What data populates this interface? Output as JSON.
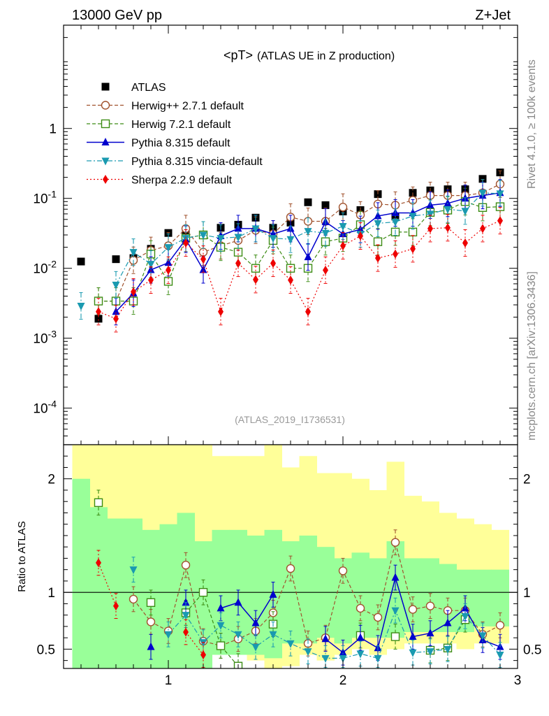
{
  "header": {
    "left": "13000 GeV pp",
    "right": "Z+Jet",
    "side_top": "Rivet 4.1.0, ≥ 100k events",
    "side_bottom": "mcplots.cern.ch [arXiv:1306.3436]",
    "watermark": "(ATLAS_2019_I1736531)"
  },
  "colors": {
    "atlas": "#000000",
    "herwigpp": "#a0522d",
    "herwig7": "#3c8c14",
    "pythia": "#0000cd",
    "vincia": "#1a9ab0",
    "sherpa": "#ee0000",
    "band_outer": "#ffff99",
    "band_inner": "#99ff99"
  },
  "chart_data": [
    {
      "type": "scatter",
      "title_main": "<pT>",
      "title_sub": "(ATLAS UE in Z production)",
      "xlabel": "",
      "ylabel": "",
      "yscale": "log",
      "xlim": [
        0.4,
        3.0
      ],
      "ylim": [
        3e-05,
        30
      ],
      "yticks": [
        0.0001,
        0.001,
        0.01,
        0.1,
        1
      ],
      "ytick_labels": [
        "10^-4",
        "10^-3",
        "10^-2",
        "10^-1",
        "1"
      ],
      "x": [
        0.5,
        0.6,
        0.7,
        0.8,
        0.9,
        1.0,
        1.1,
        1.2,
        1.3,
        1.4,
        1.5,
        1.6,
        1.7,
        1.8,
        1.9,
        2.0,
        2.1,
        2.2,
        2.3,
        2.4,
        2.5,
        2.6,
        2.7,
        2.8,
        2.9
      ],
      "legend": [
        "ATLAS",
        "Herwig++ 2.7.1 default",
        "Herwig 7.2.1 default",
        "Pythia 8.315 default",
        "Pythia 8.315 vincia-default",
        "Sherpa 2.2.9 default"
      ],
      "series": [
        {
          "name": "ATLAS",
          "key": "atlas",
          "marker": "square-filled",
          "line": "none",
          "values": [
            0.0125,
            0.0019,
            0.0135,
            0.014,
            0.019,
            0.032,
            0.035,
            0.03,
            0.038,
            0.042,
            0.053,
            0.038,
            0.045,
            0.088,
            0.08,
            0.065,
            0.068,
            0.115,
            0.055,
            0.12,
            0.13,
            0.135,
            0.135,
            0.19,
            0.235
          ]
        },
        {
          "name": "Herwig++ 2.7.1 default",
          "key": "herwigpp",
          "marker": "circle-open",
          "line": "dashed",
          "values": [
            null,
            0.0034,
            0.0034,
            0.013,
            0.018,
            0.021,
            0.037,
            0.017,
            0.021,
            0.025,
            0.035,
            0.031,
            0.054,
            0.047,
            0.047,
            0.075,
            0.058,
            0.083,
            0.08,
            0.094,
            0.11,
            0.11,
            0.11,
            0.12,
            0.16
          ]
        },
        {
          "name": "Herwig 7.2.1 default",
          "key": "herwig7",
          "marker": "square-open",
          "line": "dashed",
          "values": [
            null,
            0.0034,
            0.0034,
            0.0034,
            0.016,
            0.0065,
            0.027,
            0.03,
            0.02,
            0.017,
            0.01,
            0.025,
            0.01,
            0.01,
            0.024,
            0.027,
            0.042,
            0.024,
            0.033,
            0.033,
            0.063,
            0.068,
            0.09,
            0.074,
            0.076
          ]
        },
        {
          "name": "Pythia 8.315 default",
          "key": "pythia",
          "marker": "triangle-up-filled",
          "line": "solid",
          "values": [
            null,
            null,
            0.0024,
            0.0044,
            0.0095,
            0.012,
            0.026,
            0.0095,
            0.029,
            0.037,
            0.037,
            0.031,
            0.037,
            0.0145,
            0.046,
            0.031,
            0.036,
            0.056,
            0.062,
            0.062,
            0.08,
            0.085,
            0.1,
            0.11,
            0.12
          ]
        },
        {
          "name": "Pythia 8.315 vincia-default",
          "key": "vincia",
          "marker": "triangle-down-filled",
          "line": "dashdot",
          "values": [
            0.0029,
            null,
            0.0058,
            0.017,
            0.0115,
            0.02,
            0.027,
            0.03,
            0.027,
            0.028,
            0.037,
            0.027,
            0.026,
            0.034,
            0.032,
            0.04,
            0.031,
            0.044,
            0.046,
            0.056,
            0.06,
            0.07,
            0.066,
            0.12,
            0.117
          ]
        },
        {
          "name": "Sherpa 2.2.9 default",
          "key": "sherpa",
          "marker": "diamond-filled",
          "line": "dotted",
          "values": [
            null,
            0.0024,
            0.0019,
            0.0046,
            0.0068,
            0.0094,
            0.023,
            0.0135,
            0.0024,
            0.0118,
            0.0069,
            0.0118,
            0.0068,
            0.0024,
            0.0094,
            0.021,
            0.029,
            0.014,
            0.016,
            0.019,
            0.037,
            0.038,
            0.023,
            0.037,
            0.048
          ]
        }
      ]
    },
    {
      "type": "scatter",
      "ylabel": "Ratio to ATLAS",
      "xlim": [
        0.4,
        3.0
      ],
      "ylim": [
        0.33,
        2.3
      ],
      "xticks": [
        1,
        2,
        3
      ],
      "xtick_labels": [
        "1",
        "2",
        "3"
      ],
      "yticks": [
        0.5,
        1,
        2
      ],
      "ytick_labels": [
        "0.5",
        "1",
        "2"
      ],
      "reference_line": 1,
      "x": [
        0.5,
        0.6,
        0.7,
        0.8,
        0.9,
        1.0,
        1.1,
        1.2,
        1.3,
        1.4,
        1.5,
        1.6,
        1.7,
        1.8,
        1.9,
        2.0,
        2.1,
        2.2,
        2.3,
        2.4,
        2.5,
        2.6,
        2.7,
        2.8,
        2.9
      ],
      "band_outer": [
        [
          0.0,
          2.4
        ],
        [
          0.0,
          2.4
        ],
        [
          0.0,
          2.4
        ],
        [
          0.0,
          2.4
        ],
        [
          0.0,
          2.4
        ],
        [
          0.0,
          2.4
        ],
        [
          0.0,
          2.4
        ],
        [
          0.0,
          2.4
        ],
        [
          0.5,
          2.2
        ],
        [
          0.5,
          2.2
        ],
        [
          0.4,
          2.2
        ],
        [
          0.0,
          2.4
        ],
        [
          0.35,
          2.1
        ],
        [
          0.45,
          2.2
        ],
        [
          0.4,
          2.05
        ],
        [
          0.45,
          2.05
        ],
        [
          0.5,
          2.0
        ],
        [
          0.45,
          1.9
        ],
        [
          0.5,
          2.15
        ],
        [
          0.55,
          1.85
        ],
        [
          0.55,
          1.8
        ],
        [
          0.55,
          1.7
        ],
        [
          0.5,
          1.65
        ],
        [
          0.55,
          1.6
        ],
        [
          0.55,
          1.55
        ]
      ],
      "band_inner": [
        [
          0.0,
          2.0
        ],
        [
          0.0,
          1.75
        ],
        [
          0.0,
          1.65
        ],
        [
          0.0,
          1.65
        ],
        [
          0.0,
          1.55
        ],
        [
          0.0,
          1.6
        ],
        [
          0.0,
          1.7
        ],
        [
          0.0,
          1.45
        ],
        [
          0.45,
          1.55
        ],
        [
          0.45,
          1.55
        ],
        [
          0.45,
          1.5
        ],
        [
          0.42,
          1.55
        ],
        [
          0.55,
          1.45
        ],
        [
          0.55,
          1.5
        ],
        [
          0.6,
          1.4
        ],
        [
          0.55,
          1.3
        ],
        [
          0.6,
          1.35
        ],
        [
          0.6,
          1.3
        ],
        [
          0.6,
          1.45
        ],
        [
          0.65,
          1.3
        ],
        [
          0.65,
          1.3
        ],
        [
          0.65,
          1.25
        ],
        [
          0.65,
          1.2
        ],
        [
          0.7,
          1.2
        ],
        [
          0.7,
          1.2
        ]
      ],
      "series": [
        {
          "name": "Herwig++ 2.7.1 default",
          "key": "herwigpp",
          "marker": "circle-open",
          "line": "dashed",
          "values": [
            null,
            null,
            null,
            0.94,
            0.74,
            0.66,
            1.24,
            0.57,
            0.53,
            0.59,
            0.66,
            0.82,
            1.21,
            0.55,
            0.6,
            1.19,
            0.86,
            0.78,
            1.44,
            0.85,
            0.88,
            0.84,
            0.84,
            0.63,
            0.71
          ]
        },
        {
          "name": "Herwig 7.2.1 default",
          "key": "herwig7",
          "marker": "square-open",
          "line": "dashed",
          "values": [
            null,
            1.79,
            null,
            null,
            0.91,
            null,
            0.82,
            1.0,
            0.53,
            0.35,
            null,
            0.72,
            null,
            null,
            null,
            null,
            0.62,
            null,
            0.61,
            null,
            0.49,
            0.51,
            0.76,
            null,
            null
          ]
        },
        {
          "name": "Pythia 8.315 default",
          "key": "pythia",
          "marker": "triangle-up-filled",
          "line": "solid",
          "values": [
            null,
            null,
            null,
            null,
            0.52,
            null,
            0.91,
            null,
            0.86,
            0.91,
            0.73,
            0.98,
            null,
            null,
            0.59,
            0.47,
            0.6,
            0.51,
            1.13,
            0.61,
            0.64,
            0.73,
            0.86,
            0.58,
            0.52
          ]
        },
        {
          "name": "Pythia 8.315 vincia-default",
          "key": "vincia",
          "marker": "triangle-down-filled",
          "line": "dashdot",
          "values": [
            null,
            null,
            null,
            1.2,
            null,
            0.63,
            0.8,
            0.56,
            0.71,
            0.63,
            0.52,
            0.63,
            0.55,
            0.48,
            0.42,
            0.42,
            0.46,
            0.42,
            0.84,
            0.47,
            0.48,
            0.5,
            0.79,
            0.62,
            0.45
          ]
        },
        {
          "name": "Sherpa 2.2.9 default",
          "key": "sherpa",
          "marker": "diamond-filled",
          "line": "dotted",
          "values": [
            null,
            1.26,
            0.88,
            null,
            null,
            null,
            0.65,
            0.45,
            null,
            null,
            null,
            null,
            null,
            null,
            null,
            null,
            null,
            null,
            null,
            null,
            null,
            null,
            null,
            null,
            null
          ]
        }
      ]
    }
  ]
}
